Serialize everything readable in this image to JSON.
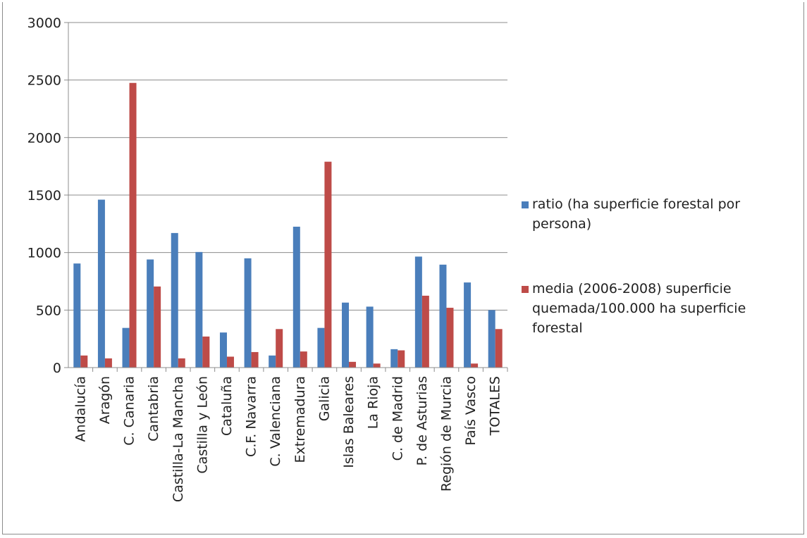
{
  "chart_data": {
    "type": "bar",
    "title": "",
    "xlabel": "",
    "ylabel": "",
    "ylim": [
      0,
      3000
    ],
    "yticks": [
      0,
      500,
      1000,
      1500,
      2000,
      2500,
      3000
    ],
    "grid": true,
    "legend_position": "right",
    "categories": [
      "Andalucía",
      "Aragón",
      "C. Canaria",
      "Cantabria",
      "Castilla-La Mancha",
      "Castilla y León",
      "Cataluña",
      "C.F. Navarra",
      "C. Valenciana",
      "Extremadura",
      "Galicia",
      "Islas Baleares",
      "La Rioja",
      "C. de Madrid",
      "P. de Asturias",
      "Región de Murcia",
      "País Vasco",
      "TOTALES"
    ],
    "series": [
      {
        "name": "ratio (ha superficie forestal por persona)",
        "legend_lines": [
          "ratio (ha superficie forestal  por",
          "persona)"
        ],
        "color": "#4a7ebb",
        "values": [
          905,
          1460,
          345,
          940,
          1170,
          1005,
          305,
          950,
          105,
          1225,
          345,
          565,
          530,
          160,
          965,
          895,
          740,
          500
        ]
      },
      {
        "name": "media (2006-2008) superficie quemada/100.000 ha superficie forestal",
        "legend_lines": [
          "media (2006-2008) superficie",
          "quemada/100.000 ha superficie",
          "forestal"
        ],
        "color": "#be4b48",
        "values": [
          105,
          80,
          2475,
          705,
          80,
          270,
          95,
          135,
          335,
          140,
          1790,
          50,
          35,
          150,
          625,
          520,
          35,
          335
        ]
      }
    ]
  }
}
